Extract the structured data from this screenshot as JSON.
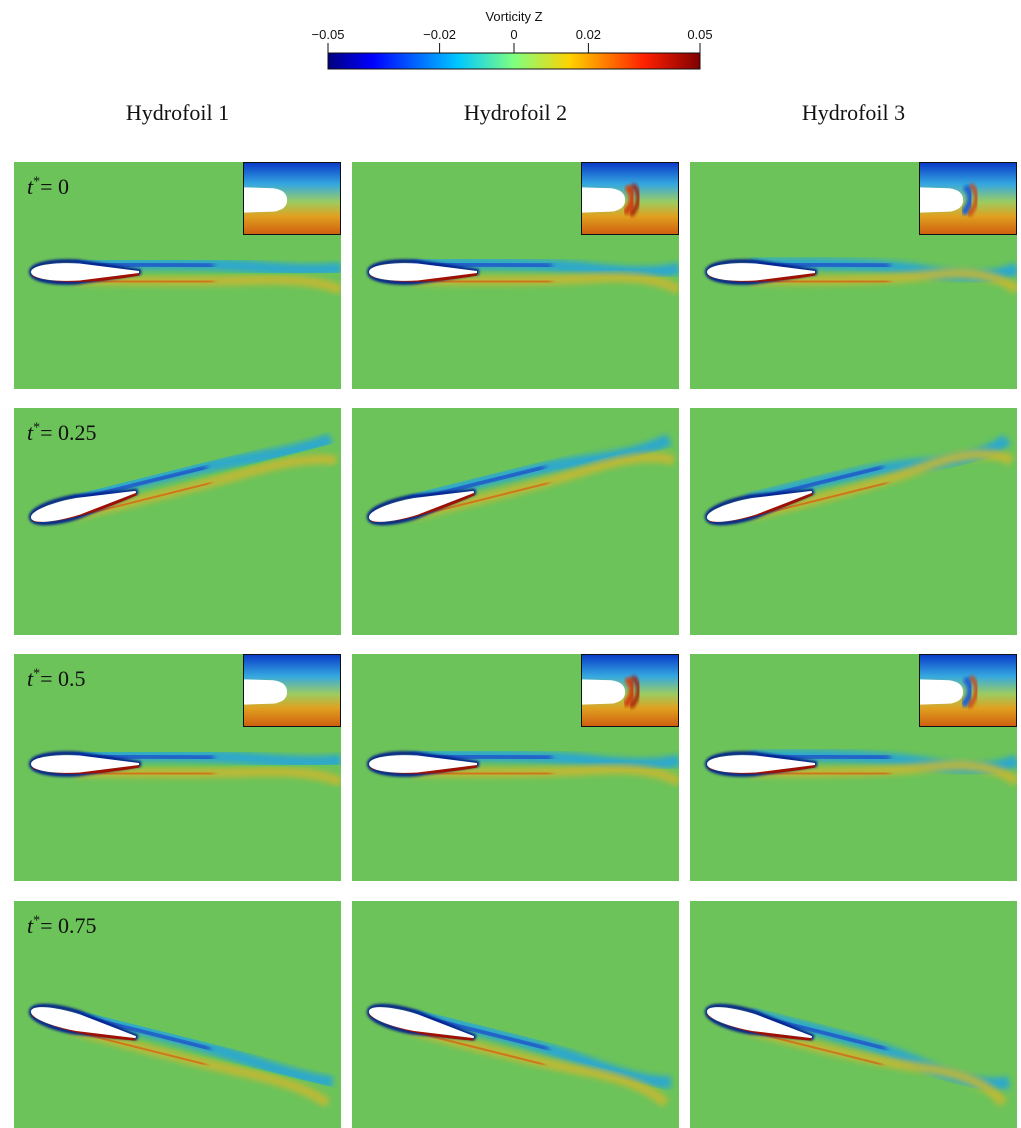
{
  "colorbar": {
    "title": "Vorticity Z",
    "ticks": [
      "−0.05",
      "−0.02",
      "0",
      "0.02",
      "0.05"
    ],
    "tick_values": [
      -0.05,
      -0.02,
      0,
      0.02,
      0.05
    ],
    "range": [
      -0.05,
      0.05
    ],
    "colormap": [
      "#00007f",
      "#0000ff",
      "#00c8ff",
      "#7fff7f",
      "#ffd200",
      "#ff2000",
      "#7f0000"
    ]
  },
  "columns": [
    "Hydrofoil 1",
    "Hydrofoil 2",
    "Hydrofoil 3"
  ],
  "rows": [
    {
      "time_label": "= 0",
      "pitch": "level",
      "insets": true
    },
    {
      "time_label": "= 0.25",
      "pitch": "nose-down",
      "insets": false
    },
    {
      "time_label": "= 0.5",
      "pitch": "level",
      "insets": true
    },
    {
      "time_label": "= 0.75",
      "pitch": "nose-up",
      "insets": false
    }
  ],
  "time_symbol": "t",
  "time_superscript": "*",
  "colors": {
    "background_field": "#6cc35a",
    "foil": "#ffffff",
    "negative_layer": "#001a8c",
    "positive_layer": "#a01000"
  }
}
